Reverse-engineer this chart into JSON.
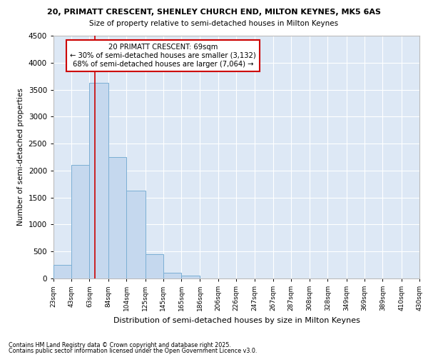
{
  "title_line1": "20, PRIMATT CRESCENT, SHENLEY CHURCH END, MILTON KEYNES, MK5 6AS",
  "title_line2": "Size of property relative to semi-detached houses in Milton Keynes",
  "xlabel": "Distribution of semi-detached houses by size in Milton Keynes",
  "ylabel": "Number of semi-detached properties",
  "footnote1": "Contains HM Land Registry data © Crown copyright and database right 2025.",
  "footnote2": "Contains public sector information licensed under the Open Government Licence v3.0.",
  "bar_left_edges": [
    23,
    43,
    63,
    84,
    104,
    125,
    145,
    165,
    186,
    206,
    226,
    247,
    267,
    287,
    308,
    328,
    349,
    369,
    389,
    410
  ],
  "bar_widths": [
    20,
    20,
    21,
    20,
    21,
    20,
    20,
    21,
    20,
    20,
    21,
    20,
    20,
    21,
    20,
    21,
    20,
    20,
    21,
    20
  ],
  "bar_heights": [
    250,
    2100,
    3625,
    2250,
    1625,
    450,
    100,
    55,
    0,
    0,
    0,
    0,
    0,
    0,
    0,
    0,
    0,
    0,
    0,
    0
  ],
  "bar_color": "#c5d8ee",
  "bar_edge_color": "#7bafd4",
  "tick_labels": [
    "23sqm",
    "43sqm",
    "63sqm",
    "84sqm",
    "104sqm",
    "125sqm",
    "145sqm",
    "165sqm",
    "186sqm",
    "206sqm",
    "226sqm",
    "247sqm",
    "267sqm",
    "287sqm",
    "308sqm",
    "328sqm",
    "349sqm",
    "369sqm",
    "389sqm",
    "410sqm",
    "430sqm"
  ],
  "ylim": [
    0,
    4500
  ],
  "yticks": [
    0,
    500,
    1000,
    1500,
    2000,
    2500,
    3000,
    3500,
    4000,
    4500
  ],
  "property_line_x": 69,
  "annotation_title": "20 PRIMATT CRESCENT: 69sqm",
  "annotation_line1": "← 30% of semi-detached houses are smaller (3,132)",
  "annotation_line2": "68% of semi-detached houses are larger (7,064) →",
  "annotation_box_color": "#cc0000",
  "background_color": "#dde8f5",
  "grid_color": "#ffffff"
}
